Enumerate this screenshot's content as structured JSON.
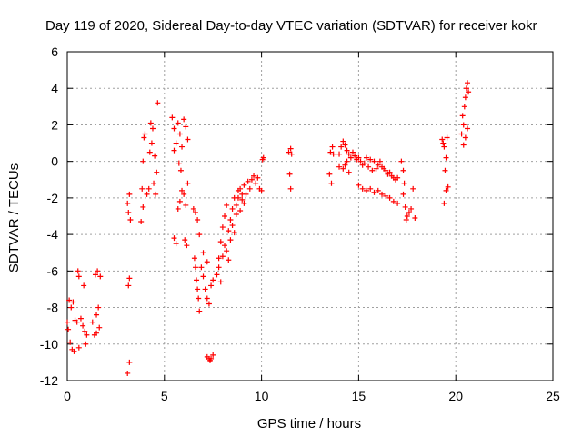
{
  "chart_data": {
    "type": "scatter",
    "title": "Day 119 of 2020, Sidereal Day-to-day VTEC variation (SDTVAR) for receiver kokr",
    "xlabel": "GPS time / hours",
    "ylabel": "SDTVAR / TECUs",
    "xlim": [
      0,
      25
    ],
    "ylim": [
      -12,
      6
    ],
    "x_ticks": [
      0,
      5,
      10,
      15,
      20,
      25
    ],
    "y_ticks": [
      -12,
      -10,
      -8,
      -6,
      -4,
      -2,
      0,
      2,
      4,
      6
    ],
    "grid": true,
    "marker": "plus",
    "color": "#ff0000",
    "clusters": [
      {
        "points": [
          [
            0.0,
            -8.8
          ],
          [
            0.1,
            -7.6
          ],
          [
            0.2,
            -8.0
          ],
          [
            0.3,
            -7.7
          ],
          [
            0.15,
            -9.9
          ],
          [
            0.25,
            -10.3
          ],
          [
            0.35,
            -10.4
          ],
          [
            0.4,
            -8.7
          ],
          [
            0.05,
            -9.2
          ]
        ]
      },
      {
        "points": [
          [
            0.5,
            -8.8
          ],
          [
            0.55,
            -6.0
          ],
          [
            0.6,
            -6.3
          ],
          [
            0.7,
            -8.6
          ],
          [
            0.8,
            -9.0
          ],
          [
            0.85,
            -6.8
          ],
          [
            0.9,
            -9.3
          ],
          [
            0.95,
            -10.0
          ],
          [
            1.0,
            -9.5
          ],
          [
            0.6,
            -10.2
          ]
        ]
      },
      {
        "points": [
          [
            1.3,
            -8.8
          ],
          [
            1.4,
            -9.5
          ],
          [
            1.5,
            -8.4
          ],
          [
            1.45,
            -6.2
          ],
          [
            1.55,
            -6.0
          ],
          [
            1.6,
            -8.0
          ],
          [
            1.65,
            -9.1
          ],
          [
            1.7,
            -6.3
          ],
          [
            1.5,
            -9.4
          ]
        ]
      },
      {
        "points": [
          [
            3.1,
            -11.6
          ],
          [
            3.2,
            -11.0
          ],
          [
            3.15,
            -6.8
          ],
          [
            3.2,
            -6.4
          ],
          [
            3.1,
            -2.3
          ],
          [
            3.2,
            -1.8
          ],
          [
            3.15,
            -2.8
          ],
          [
            3.25,
            -3.2
          ]
        ]
      },
      {
        "points": [
          [
            3.8,
            -3.3
          ],
          [
            3.9,
            -2.5
          ],
          [
            3.85,
            -1.5
          ],
          [
            3.9,
            0.0
          ],
          [
            3.95,
            1.3
          ],
          [
            4.0,
            1.5
          ],
          [
            4.1,
            -1.8
          ],
          [
            4.2,
            -1.5
          ],
          [
            4.25,
            0.5
          ]
        ]
      },
      {
        "points": [
          [
            4.3,
            2.1
          ],
          [
            4.4,
            1.8
          ],
          [
            4.5,
            0.3
          ],
          [
            4.6,
            -0.6
          ],
          [
            4.45,
            -1.2
          ],
          [
            4.35,
            1.0
          ],
          [
            4.65,
            3.2
          ],
          [
            4.55,
            -1.8
          ]
        ]
      },
      {
        "points": [
          [
            5.4,
            2.4
          ],
          [
            5.5,
            1.8
          ],
          [
            5.6,
            1.0
          ],
          [
            5.7,
            2.1
          ],
          [
            5.8,
            1.5
          ],
          [
            5.9,
            0.8
          ],
          [
            6.0,
            2.3
          ],
          [
            6.1,
            1.9
          ],
          [
            6.2,
            1.2
          ],
          [
            5.5,
            0.6
          ],
          [
            5.75,
            -0.1
          ],
          [
            5.85,
            -0.5
          ]
        ]
      },
      {
        "points": [
          [
            5.5,
            -4.2
          ],
          [
            5.6,
            -4.5
          ],
          [
            5.7,
            -2.6
          ],
          [
            5.8,
            -2.2
          ],
          [
            5.9,
            -1.6
          ],
          [
            6.0,
            -1.8
          ],
          [
            6.1,
            -2.4
          ],
          [
            6.05,
            -4.3
          ],
          [
            6.15,
            -4.6
          ],
          [
            6.2,
            -1.2
          ]
        ]
      },
      {
        "points": [
          [
            6.5,
            -2.6
          ],
          [
            6.6,
            -2.8
          ],
          [
            6.55,
            -5.3
          ],
          [
            6.6,
            -5.8
          ],
          [
            6.65,
            -6.5
          ],
          [
            6.7,
            -7.0
          ],
          [
            6.75,
            -7.5
          ],
          [
            6.8,
            -8.2
          ],
          [
            6.7,
            -3.2
          ],
          [
            6.8,
            -4.0
          ]
        ]
      },
      {
        "points": [
          [
            6.9,
            -5.8
          ],
          [
            7.0,
            -6.3
          ],
          [
            7.1,
            -7.0
          ],
          [
            7.2,
            -7.5
          ],
          [
            7.3,
            -7.8
          ],
          [
            7.4,
            -6.8
          ],
          [
            7.2,
            -5.5
          ],
          [
            7.5,
            -6.5
          ],
          [
            7.0,
            -5.0
          ]
        ]
      },
      {
        "points": [
          [
            7.2,
            -10.7
          ],
          [
            7.3,
            -10.8
          ],
          [
            7.4,
            -10.8
          ],
          [
            7.5,
            -10.6
          ],
          [
            7.35,
            -10.9
          ]
        ]
      },
      {
        "points": [
          [
            7.7,
            -6.2
          ],
          [
            7.8,
            -5.3
          ],
          [
            7.9,
            -4.4
          ],
          [
            8.0,
            -3.6
          ],
          [
            8.1,
            -3.0
          ],
          [
            8.2,
            -2.4
          ],
          [
            8.3,
            -3.8
          ],
          [
            8.4,
            -3.2
          ],
          [
            8.5,
            -2.6
          ],
          [
            8.6,
            -2.0
          ],
          [
            8.7,
            -2.9
          ],
          [
            8.8,
            -1.6
          ],
          [
            8.9,
            -1.5
          ],
          [
            9.0,
            -2.1
          ],
          [
            9.1,
            -1.3
          ],
          [
            9.2,
            -1.8
          ],
          [
            9.3,
            -1.1
          ],
          [
            9.4,
            -1.5
          ],
          [
            9.5,
            -1.0
          ],
          [
            9.6,
            -0.8
          ],
          [
            9.7,
            -1.2
          ],
          [
            9.8,
            -0.9
          ],
          [
            9.9,
            -1.5
          ],
          [
            10.0,
            -1.6
          ]
        ]
      },
      {
        "points": [
          [
            7.8,
            -5.8
          ],
          [
            7.9,
            -6.6
          ],
          [
            8.0,
            -5.2
          ],
          [
            8.1,
            -4.6
          ],
          [
            8.2,
            -4.9
          ],
          [
            8.3,
            -5.4
          ],
          [
            8.4,
            -4.3
          ],
          [
            8.5,
            -3.5
          ],
          [
            8.6,
            -3.9
          ],
          [
            8.7,
            -2.4
          ],
          [
            8.8,
            -2.0
          ],
          [
            8.9,
            -2.7
          ],
          [
            9.0,
            -1.8
          ],
          [
            9.1,
            -2.3
          ]
        ]
      },
      {
        "points": [
          [
            10.05,
            0.1
          ],
          [
            10.1,
            0.2
          ]
        ]
      },
      {
        "points": [
          [
            11.4,
            0.5
          ],
          [
            11.5,
            0.7
          ],
          [
            11.45,
            -0.7
          ],
          [
            11.5,
            -1.5
          ],
          [
            11.55,
            0.4
          ]
        ]
      },
      {
        "points": [
          [
            13.5,
            -0.7
          ],
          [
            13.6,
            -1.2
          ],
          [
            13.55,
            0.5
          ],
          [
            13.65,
            0.8
          ],
          [
            13.7,
            0.4
          ]
        ]
      },
      {
        "points": [
          [
            14.0,
            0.4
          ],
          [
            14.1,
            0.8
          ],
          [
            14.2,
            1.1
          ],
          [
            14.3,
            0.9
          ],
          [
            14.4,
            0.6
          ],
          [
            14.5,
            0.4
          ],
          [
            14.6,
            0.2
          ],
          [
            14.7,
            0.5
          ],
          [
            14.8,
            0.3
          ],
          [
            14.9,
            0.1
          ],
          [
            15.0,
            0.2
          ],
          [
            15.1,
            0.0
          ],
          [
            15.2,
            -0.2
          ],
          [
            14.2,
            -0.4
          ],
          [
            14.3,
            -0.2
          ],
          [
            14.5,
            -0.6
          ],
          [
            14.0,
            -0.3
          ],
          [
            14.4,
            0.0
          ]
        ]
      },
      {
        "points": [
          [
            15.3,
            -0.1
          ],
          [
            15.4,
            0.2
          ],
          [
            15.5,
            -0.3
          ],
          [
            15.6,
            0.1
          ],
          [
            15.7,
            -0.5
          ],
          [
            15.8,
            0.0
          ],
          [
            15.9,
            -0.4
          ],
          [
            16.0,
            -0.2
          ],
          [
            16.1,
            0.0
          ],
          [
            16.2,
            -0.3
          ],
          [
            16.3,
            -0.4
          ],
          [
            16.4,
            -0.5
          ],
          [
            16.5,
            -0.7
          ],
          [
            16.6,
            -0.6
          ],
          [
            16.7,
            -0.8
          ],
          [
            16.8,
            -0.9
          ],
          [
            16.9,
            -1.0
          ],
          [
            17.0,
            -0.9
          ]
        ]
      },
      {
        "points": [
          [
            15.0,
            -1.3
          ],
          [
            15.2,
            -1.5
          ],
          [
            15.4,
            -1.6
          ],
          [
            15.6,
            -1.5
          ],
          [
            15.8,
            -1.7
          ],
          [
            16.0,
            -1.6
          ],
          [
            16.2,
            -1.8
          ],
          [
            16.4,
            -1.9
          ],
          [
            16.6,
            -2.0
          ],
          [
            16.8,
            -2.2
          ],
          [
            17.0,
            -2.3
          ]
        ]
      },
      {
        "points": [
          [
            17.2,
            0.0
          ],
          [
            17.3,
            -0.5
          ],
          [
            17.35,
            -1.2
          ],
          [
            17.4,
            -2.5
          ],
          [
            17.45,
            -3.2
          ],
          [
            17.5,
            -3.0
          ],
          [
            17.6,
            -2.8
          ],
          [
            17.7,
            -2.6
          ],
          [
            17.8,
            -1.5
          ],
          [
            17.9,
            -3.1
          ],
          [
            17.3,
            -1.8
          ]
        ]
      },
      {
        "points": [
          [
            19.3,
            1.2
          ],
          [
            19.4,
            0.8
          ],
          [
            19.5,
            0.2
          ],
          [
            19.45,
            -0.5
          ],
          [
            19.35,
            1.0
          ],
          [
            19.55,
            1.3
          ],
          [
            19.4,
            -2.3
          ],
          [
            19.5,
            -1.6
          ],
          [
            19.6,
            -1.4
          ]
        ]
      },
      {
        "points": [
          [
            20.3,
            1.5
          ],
          [
            20.4,
            2.0
          ],
          [
            20.45,
            3.0
          ],
          [
            20.5,
            3.5
          ],
          [
            20.55,
            4.0
          ],
          [
            20.6,
            4.3
          ],
          [
            20.35,
            2.5
          ],
          [
            20.5,
            1.3
          ],
          [
            20.6,
            1.8
          ],
          [
            20.65,
            3.8
          ],
          [
            20.4,
            0.9
          ]
        ]
      }
    ]
  }
}
